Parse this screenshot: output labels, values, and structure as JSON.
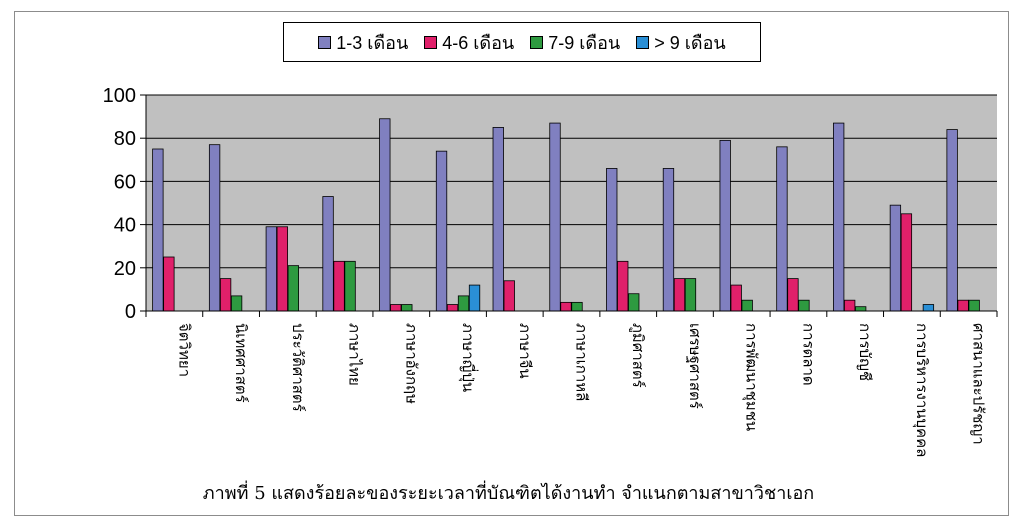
{
  "caption": "ภาพที่ 5 แสดงร้อยละของระยะเวลาที่บัณฑิตได้งานทำ จำแนกตามสาขาวิชาเอก",
  "chart_data": {
    "type": "bar",
    "categories": [
      "จิตวิทยา",
      "นิเทศศาสตร์",
      "ประวัติศาสตร์",
      "ภาษาไทย",
      "ภาษาอังกฤษ",
      "ภาษาญี่ปุ่น",
      "ภาษาจีน",
      "ภาษาเกาหลี",
      "ภูมิศาสตร์",
      "เศรษฐศาสตร์",
      "การพัฒนาชุมชน",
      "การตลาด",
      "การบัญชี",
      "การบริหารงานบุคคล",
      "ศาสนาและปรัชญา"
    ],
    "series": [
      {
        "name": "1-3 เดือน",
        "color": "#8080c0",
        "values": [
          75,
          77,
          39,
          53,
          89,
          74,
          85,
          87,
          66,
          66,
          79,
          76,
          87,
          49,
          84
        ]
      },
      {
        "name": "4-6 เดือน",
        "color": "#e0206a",
        "values": [
          25,
          15,
          39,
          23,
          3,
          3,
          14,
          4,
          23,
          15,
          12,
          15,
          5,
          45,
          5
        ]
      },
      {
        "name": "7-9 เดือน",
        "color": "#2e9a40",
        "values": [
          0,
          7,
          21,
          23,
          3,
          7,
          0,
          4,
          8,
          15,
          5,
          5,
          2,
          0,
          5
        ]
      },
      {
        "name": "> 9 เดือน",
        "color": "#2a8fd6",
        "values": [
          0,
          0,
          0,
          0,
          0,
          12,
          0,
          0,
          0,
          0,
          0,
          0,
          0,
          3,
          0
        ]
      }
    ],
    "yticks": [
      0,
      20,
      40,
      60,
      80,
      100
    ],
    "ylim": [
      0,
      100
    ],
    "grid": true,
    "legend_position": "top-center",
    "plot_background": "#c0c0c0"
  }
}
